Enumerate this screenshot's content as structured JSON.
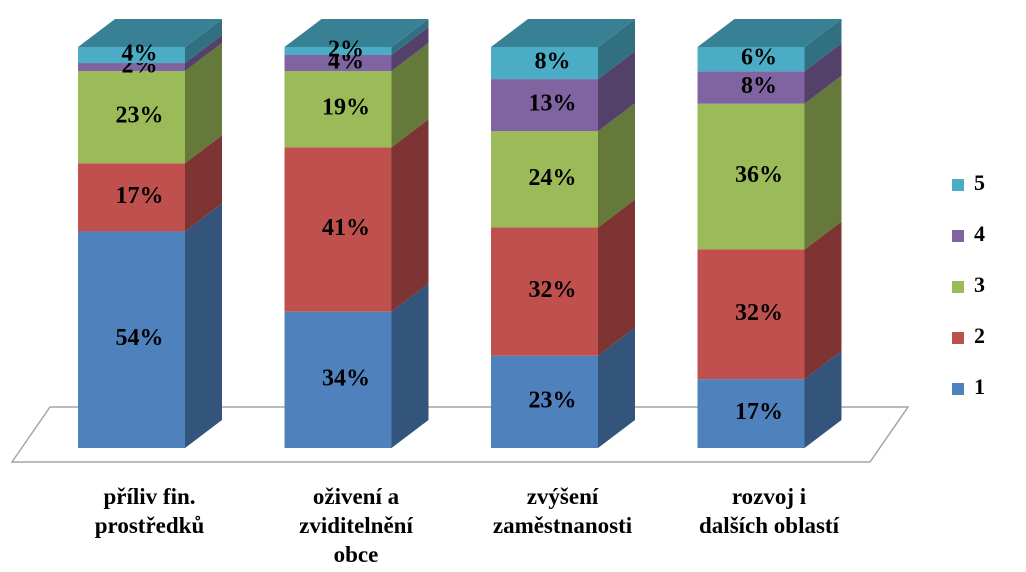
{
  "chart_data": {
    "type": "bar3d_stacked",
    "categories": [
      "příliv fin.\nprostředků",
      "oživení a\nzviditelnění\nobce",
      "zvýšení\nzaměstnanosti",
      "rozvoj i\ndalších oblastí"
    ],
    "series": [
      {
        "name": "1",
        "color": "#4f81bd",
        "values": [
          54,
          34,
          23,
          17
        ],
        "value_labels": [
          "54%",
          "34%",
          "23%",
          "17%"
        ]
      },
      {
        "name": "2",
        "color": "#c0504d",
        "values": [
          17,
          41,
          32,
          32
        ],
        "value_labels": [
          "17%",
          "41%",
          "32%",
          "32%"
        ]
      },
      {
        "name": "3",
        "color": "#9bbb59",
        "values": [
          23,
          19,
          24,
          36
        ],
        "value_labels": [
          "23%",
          "19%",
          "24%",
          "36%"
        ]
      },
      {
        "name": "4",
        "color": "#8064a2",
        "values": [
          2,
          4,
          13,
          8
        ],
        "value_labels": [
          "2%",
          "4%",
          "13%",
          "8%"
        ]
      },
      {
        "name": "5",
        "color": "#4bacc6",
        "values": [
          4,
          2,
          8,
          6
        ],
        "value_labels": [
          "4%",
          "2%",
          "8%",
          "6%"
        ]
      }
    ],
    "legend": "right"
  }
}
